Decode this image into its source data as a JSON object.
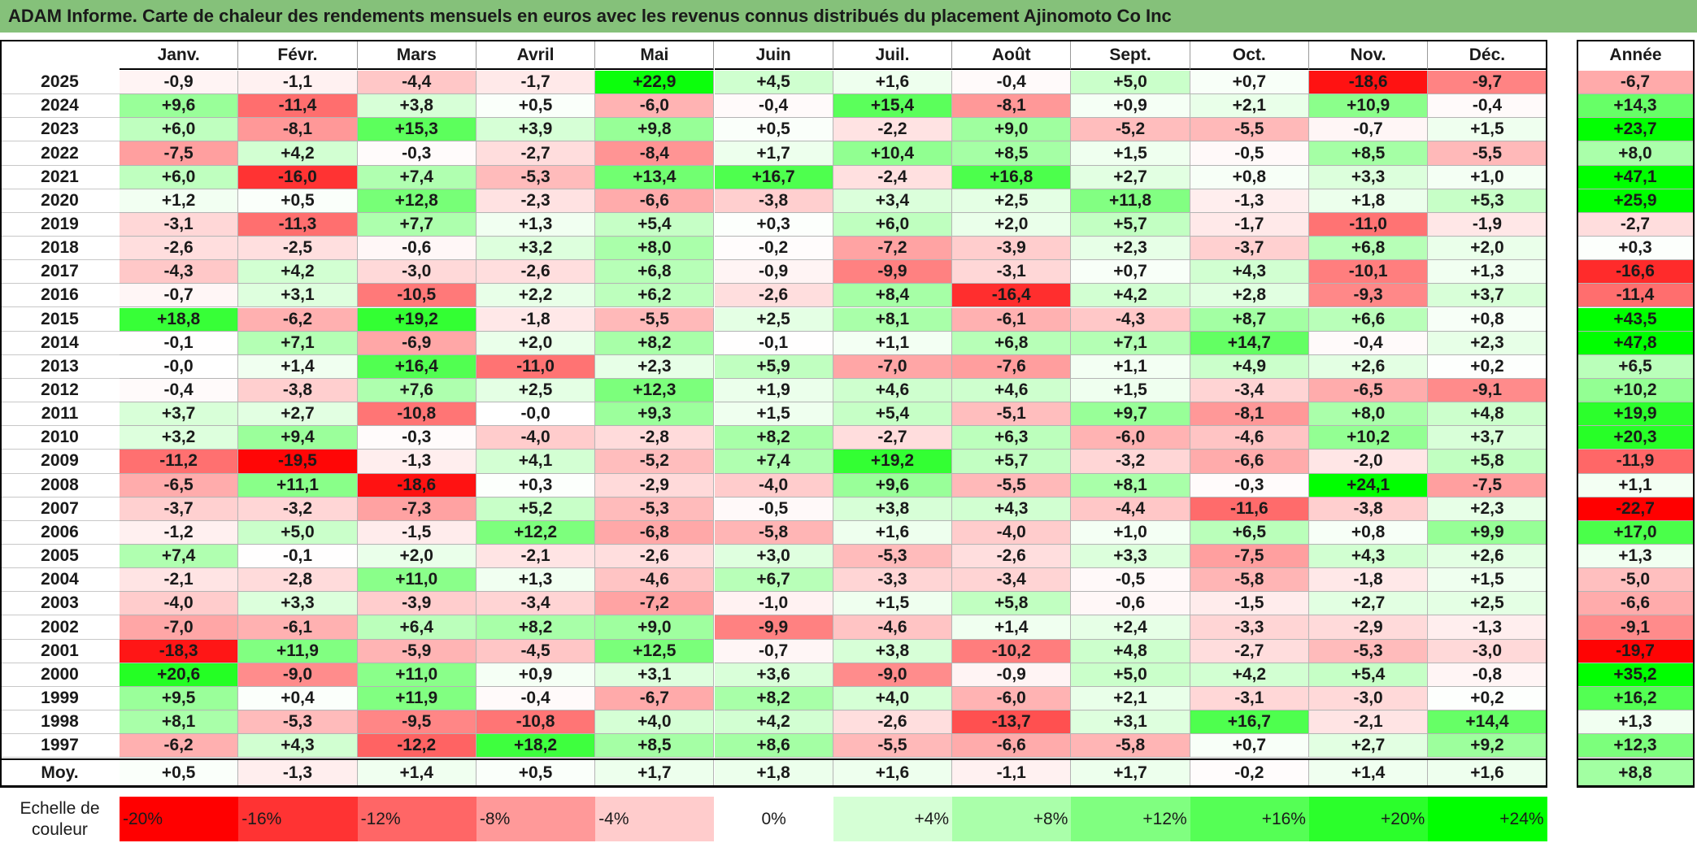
{
  "title": "ADAM Informe. Carte de chaleur des rendements mensuels en euros avec les revenus connus distribués du placement Ajinomoto Co Inc",
  "chart_data": {
    "type": "heatmap",
    "title": "ADAM Informe. Carte de chaleur des rendements mensuels en euros avec les revenus connus distribués du placement Ajinomoto Co Inc",
    "columns": [
      "Janv.",
      "Févr.",
      "Mars",
      "Avril",
      "Mai",
      "Juin",
      "Juil.",
      "Août",
      "Sept.",
      "Oct.",
      "Nov.",
      "Déc."
    ],
    "annual_header": "Année",
    "rows": [
      {
        "year": "2025",
        "values": [
          "-0,9",
          "-1,1",
          "-4,4",
          "-1,7",
          "+22,9",
          "+4,5",
          "+1,6",
          "-0,4",
          "+5,0",
          "+0,7",
          "-18,6",
          "-9,7"
        ],
        "annual": "-6,7"
      },
      {
        "year": "2024",
        "values": [
          "+9,6",
          "-11,4",
          "+3,8",
          "+0,5",
          "-6,0",
          "-0,4",
          "+15,4",
          "-8,1",
          "+0,9",
          "+2,1",
          "+10,9",
          "-0,4"
        ],
        "annual": "+14,3"
      },
      {
        "year": "2023",
        "values": [
          "+6,0",
          "-8,1",
          "+15,3",
          "+3,9",
          "+9,8",
          "+0,5",
          "-2,2",
          "+9,0",
          "-5,2",
          "-5,5",
          "-0,7",
          "+1,5"
        ],
        "annual": "+23,7"
      },
      {
        "year": "2022",
        "values": [
          "-7,5",
          "+4,2",
          "-0,3",
          "-2,7",
          "-8,4",
          "+1,7",
          "+10,4",
          "+8,5",
          "+1,5",
          "-0,5",
          "+8,5",
          "-5,5"
        ],
        "annual": "+8,0"
      },
      {
        "year": "2021",
        "values": [
          "+6,0",
          "-16,0",
          "+7,4",
          "-5,3",
          "+13,4",
          "+16,7",
          "-2,4",
          "+16,8",
          "+2,7",
          "+0,8",
          "+3,3",
          "+1,0"
        ],
        "annual": "+47,1"
      },
      {
        "year": "2020",
        "values": [
          "+1,2",
          "+0,5",
          "+12,8",
          "-2,3",
          "-6,6",
          "-3,8",
          "+3,4",
          "+2,5",
          "+11,8",
          "-1,3",
          "+1,8",
          "+5,3"
        ],
        "annual": "+25,9"
      },
      {
        "year": "2019",
        "values": [
          "-3,1",
          "-11,3",
          "+7,7",
          "+1,3",
          "+5,4",
          "+0,3",
          "+6,0",
          "+2,0",
          "+5,7",
          "-1,7",
          "-11,0",
          "-1,9"
        ],
        "annual": "-2,7"
      },
      {
        "year": "2018",
        "values": [
          "-2,6",
          "-2,5",
          "-0,6",
          "+3,2",
          "+8,0",
          "-0,2",
          "-7,2",
          "-3,9",
          "+2,3",
          "-3,7",
          "+6,8",
          "+2,0"
        ],
        "annual": "+0,3"
      },
      {
        "year": "2017",
        "values": [
          "-4,3",
          "+4,2",
          "-3,0",
          "-2,6",
          "+6,8",
          "-0,9",
          "-9,9",
          "-3,1",
          "+0,7",
          "+4,3",
          "-10,1",
          "+1,3"
        ],
        "annual": "-16,6"
      },
      {
        "year": "2016",
        "values": [
          "-0,7",
          "+3,1",
          "-10,5",
          "+2,2",
          "+6,2",
          "-2,6",
          "+8,4",
          "-16,4",
          "+4,2",
          "+2,8",
          "-9,3",
          "+3,7"
        ],
        "annual": "-11,4"
      },
      {
        "year": "2015",
        "values": [
          "+18,8",
          "-6,2",
          "+19,2",
          "-1,8",
          "-5,5",
          "+2,5",
          "+8,1",
          "-6,1",
          "-4,3",
          "+8,7",
          "+6,6",
          "+0,8"
        ],
        "annual": "+43,5"
      },
      {
        "year": "2014",
        "values": [
          "-0,1",
          "+7,1",
          "-6,9",
          "+2,0",
          "+8,2",
          "-0,1",
          "+1,1",
          "+6,8",
          "+7,1",
          "+14,7",
          "-0,4",
          "+2,3"
        ],
        "annual": "+47,8"
      },
      {
        "year": "2013",
        "values": [
          "-0,0",
          "+1,4",
          "+16,4",
          "-11,0",
          "+2,3",
          "+5,9",
          "-7,0",
          "-7,6",
          "+1,1",
          "+4,9",
          "+2,6",
          "+0,2"
        ],
        "annual": "+6,5"
      },
      {
        "year": "2012",
        "values": [
          "-0,4",
          "-3,8",
          "+7,6",
          "+2,5",
          "+12,3",
          "+1,9",
          "+4,6",
          "+4,6",
          "+1,5",
          "-3,4",
          "-6,5",
          "-9,1"
        ],
        "annual": "+10,2"
      },
      {
        "year": "2011",
        "values": [
          "+3,7",
          "+2,7",
          "-10,8",
          "-0,0",
          "+9,3",
          "+1,5",
          "+5,4",
          "-5,1",
          "+9,7",
          "-8,1",
          "+8,0",
          "+4,8"
        ],
        "annual": "+19,9"
      },
      {
        "year": "2010",
        "values": [
          "+3,2",
          "+9,4",
          "-0,3",
          "-4,0",
          "-2,8",
          "+8,2",
          "-2,7",
          "+6,3",
          "-6,0",
          "-4,6",
          "+10,2",
          "+3,7"
        ],
        "annual": "+20,3"
      },
      {
        "year": "2009",
        "values": [
          "-11,2",
          "-19,5",
          "-1,3",
          "+4,1",
          "-5,2",
          "+7,4",
          "+19,2",
          "+5,7",
          "-3,2",
          "-6,6",
          "-2,0",
          "+5,8"
        ],
        "annual": "-11,9"
      },
      {
        "year": "2008",
        "values": [
          "-6,5",
          "+11,1",
          "-18,6",
          "+0,3",
          "-2,9",
          "-4,0",
          "+9,6",
          "-5,5",
          "+8,1",
          "-0,3",
          "+24,1",
          "-7,5"
        ],
        "annual": "+1,1"
      },
      {
        "year": "2007",
        "values": [
          "-3,7",
          "-3,2",
          "-7,3",
          "+5,2",
          "-5,3",
          "-0,5",
          "+3,8",
          "+4,3",
          "-4,4",
          "-11,6",
          "-3,8",
          "+2,3"
        ],
        "annual": "-22,7"
      },
      {
        "year": "2006",
        "values": [
          "-1,2",
          "+5,0",
          "-1,5",
          "+12,2",
          "-6,8",
          "-5,8",
          "+1,6",
          "-4,0",
          "+1,0",
          "+6,5",
          "+0,8",
          "+9,9"
        ],
        "annual": "+17,0"
      },
      {
        "year": "2005",
        "values": [
          "+7,4",
          "-0,1",
          "+2,0",
          "-2,1",
          "-2,6",
          "+3,0",
          "-5,3",
          "-2,6",
          "+3,3",
          "-7,5",
          "+4,3",
          "+2,6"
        ],
        "annual": "+1,3"
      },
      {
        "year": "2004",
        "values": [
          "-2,1",
          "-2,8",
          "+11,0",
          "+1,3",
          "-4,6",
          "+6,7",
          "-3,3",
          "-3,4",
          "-0,5",
          "-5,8",
          "-1,8",
          "+1,5"
        ],
        "annual": "-5,0"
      },
      {
        "year": "2003",
        "values": [
          "-4,0",
          "+3,3",
          "-3,9",
          "-3,4",
          "-7,2",
          "-1,0",
          "+1,5",
          "+5,8",
          "-0,6",
          "-1,5",
          "+2,7",
          "+2,5"
        ],
        "annual": "-6,6"
      },
      {
        "year": "2002",
        "values": [
          "-7,0",
          "-6,1",
          "+6,4",
          "+8,2",
          "+9,0",
          "-9,9",
          "-4,6",
          "+1,4",
          "+2,4",
          "-3,3",
          "-2,9",
          "-1,3"
        ],
        "annual": "-9,1"
      },
      {
        "year": "2001",
        "values": [
          "-18,3",
          "+11,9",
          "-5,9",
          "-4,5",
          "+12,5",
          "-0,7",
          "+3,8",
          "-10,2",
          "+4,8",
          "-2,7",
          "-5,3",
          "-3,0"
        ],
        "annual": "-19,7"
      },
      {
        "year": "2000",
        "values": [
          "+20,6",
          "-9,0",
          "+11,0",
          "+0,9",
          "+3,1",
          "+3,6",
          "-9,0",
          "-0,9",
          "+5,0",
          "+4,2",
          "+5,4",
          "-0,8"
        ],
        "annual": "+35,2"
      },
      {
        "year": "1999",
        "values": [
          "+9,5",
          "+0,4",
          "+11,9",
          "-0,4",
          "-6,7",
          "+8,2",
          "+4,0",
          "-6,0",
          "+2,1",
          "-3,1",
          "-3,0",
          "+0,2"
        ],
        "annual": "+16,2"
      },
      {
        "year": "1998",
        "values": [
          "+8,1",
          "-5,3",
          "-9,5",
          "-10,8",
          "+4,0",
          "+4,2",
          "-2,6",
          "-13,7",
          "+3,1",
          "+16,7",
          "-2,1",
          "+14,4"
        ],
        "annual": "+1,3"
      },
      {
        "year": "1997",
        "values": [
          "-6,2",
          "+4,3",
          "-12,2",
          "+18,2",
          "+8,5",
          "+8,6",
          "-5,5",
          "-6,6",
          "-5,8",
          "+0,7",
          "+2,7",
          "+9,2"
        ],
        "annual": "+12,3"
      }
    ],
    "average": {
      "label": "Moy.",
      "values": [
        "+0,5",
        "-1,3",
        "+1,4",
        "+0,5",
        "+1,7",
        "+1,8",
        "+1,6",
        "-1,1",
        "+1,7",
        "-0,2",
        "+1,4",
        "+1,6"
      ],
      "annual": "+8,8"
    },
    "scale": {
      "label": "Echelle de couleur",
      "steps": [
        {
          "label": "-20%",
          "value": -20,
          "color": "#ff0000"
        },
        {
          "label": "-16%",
          "value": -16,
          "color": "#ff3333"
        },
        {
          "label": "-12%",
          "value": -12,
          "color": "#ff6666"
        },
        {
          "label": "-8%",
          "value": -8,
          "color": "#ff9999"
        },
        {
          "label": "-4%",
          "value": -4,
          "color": "#ffcccc"
        },
        {
          "label": "0%",
          "value": 0,
          "color": "#ffffff"
        },
        {
          "label": "+4%",
          "value": 4,
          "color": "#d5ffd5"
        },
        {
          "label": "+8%",
          "value": 8,
          "color": "#aaffaa"
        },
        {
          "label": "+12%",
          "value": 12,
          "color": "#80ff80"
        },
        {
          "label": "+16%",
          "value": 16,
          "color": "#55ff55"
        },
        {
          "label": "+20%",
          "value": 20,
          "color": "#2bff2b"
        },
        {
          "label": "+24%",
          "value": 24,
          "color": "#00ff00"
        }
      ]
    }
  }
}
